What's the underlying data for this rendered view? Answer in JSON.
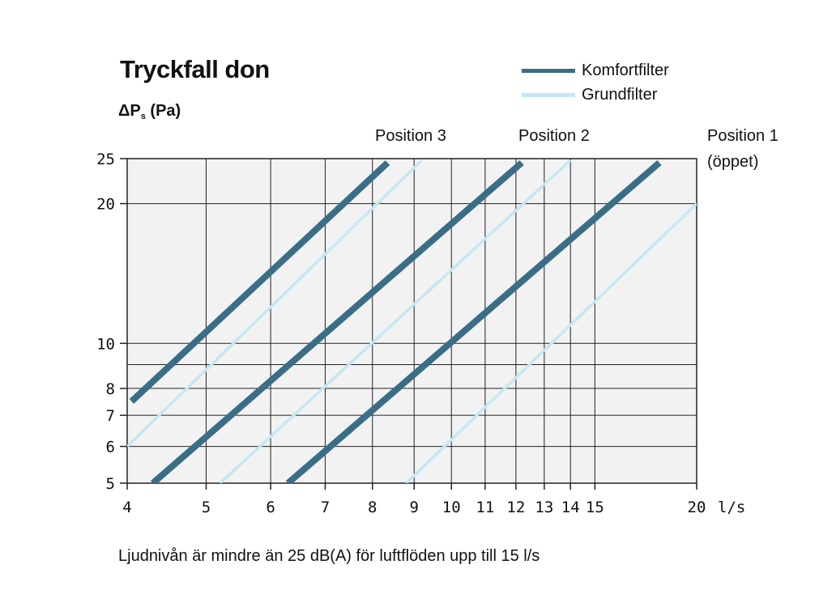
{
  "title": "Tryckfall don",
  "ylabel": {
    "main": "ΔP",
    "sub": "s",
    "unit": "(Pa)"
  },
  "legend": [
    {
      "label": "Komfortfilter",
      "color": "#3a6e86"
    },
    {
      "label": "Grundfilter",
      "color": "#c6e6f4"
    }
  ],
  "positions": {
    "p3": "Position 3",
    "p2": "Position 2",
    "p1_line1": "Position 1",
    "p1_line2": "(öppet)"
  },
  "note": "Ljudnivån är mindre än 25 dB(A) för luftflöden upp till 15 l/s",
  "chart_data": {
    "type": "line",
    "xscale": "log",
    "yscale": "log",
    "xlim": [
      4,
      20
    ],
    "ylim": [
      5,
      25
    ],
    "xticks": [
      4,
      5,
      6,
      7,
      8,
      9,
      10,
      11,
      12,
      13,
      14,
      15,
      20
    ],
    "yticks": [
      5,
      6,
      7,
      8,
      10,
      20,
      25
    ],
    "xunit": "l/s",
    "grid": true,
    "series": [
      {
        "name": "Komfortfilter",
        "group": "Position 3",
        "points": [
          [
            4.05,
            7.5
          ],
          [
            8.35,
            24.5
          ]
        ]
      },
      {
        "name": "Grundfilter",
        "group": "Position 3",
        "points": [
          [
            4.0,
            6.0
          ],
          [
            9.2,
            24.8
          ]
        ]
      },
      {
        "name": "Komfortfilter",
        "group": "Position 2",
        "points": [
          [
            4.3,
            5.0
          ],
          [
            12.2,
            24.5
          ]
        ]
      },
      {
        "name": "Grundfilter",
        "group": "Position 2",
        "points": [
          [
            5.2,
            5.0
          ],
          [
            14.0,
            24.8
          ]
        ]
      },
      {
        "name": "Komfortfilter",
        "group": "Position 1",
        "points": [
          [
            6.3,
            5.0
          ],
          [
            18.0,
            24.5
          ]
        ]
      },
      {
        "name": "Grundfilter",
        "group": "Position 1",
        "points": [
          [
            8.8,
            5.0
          ],
          [
            20.0,
            20.0
          ]
        ]
      }
    ]
  }
}
